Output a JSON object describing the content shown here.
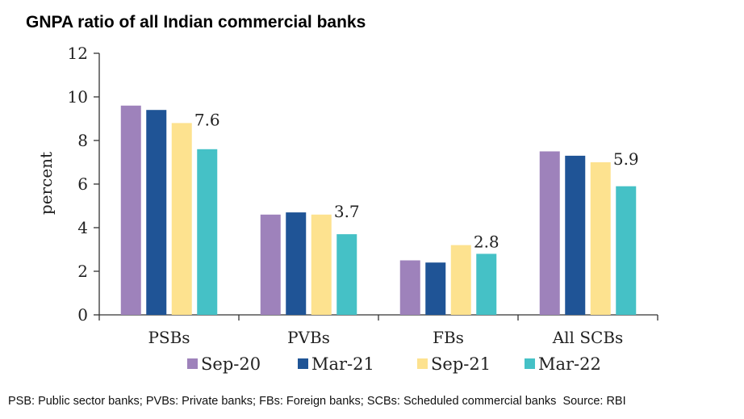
{
  "title": "GNPA ratio of all Indian commercial banks",
  "footnote": "PSB: Public sector banks; PVBs: Private banks; FBs: Foreign banks; SCBs: Scheduled commercial banks  Source: RBI",
  "chart_data": {
    "type": "bar",
    "title": "GNPA ratio of all Indian commercial banks",
    "xlabel": "",
    "ylabel": "percent",
    "ylim": [
      0,
      12
    ],
    "yticks": [
      0,
      2,
      4,
      6,
      8,
      10,
      12
    ],
    "grid": false,
    "legend_position": "bottom",
    "categories": [
      "PSBs",
      "PVBs",
      "FBs",
      "All SCBs"
    ],
    "series": [
      {
        "name": "Sep-20",
        "color": "#9e82bb",
        "values": [
          9.6,
          4.6,
          2.5,
          7.5
        ]
      },
      {
        "name": "Mar-21",
        "color": "#1f5496",
        "values": [
          9.4,
          4.7,
          2.4,
          7.3
        ]
      },
      {
        "name": "Sep-21",
        "color": "#fde28f",
        "values": [
          8.8,
          4.6,
          3.2,
          7.0
        ]
      },
      {
        "name": "Mar-22",
        "color": "#45c1c6",
        "values": [
          7.6,
          3.7,
          2.8,
          5.9
        ]
      }
    ],
    "data_labels": [
      {
        "series": "Mar-22",
        "category": "PSBs",
        "text": "7.6"
      },
      {
        "series": "Mar-22",
        "category": "PVBs",
        "text": "3.7"
      },
      {
        "series": "Mar-22",
        "category": "FBs",
        "text": "2.8"
      },
      {
        "series": "Mar-22",
        "category": "All SCBs",
        "text": "5.9"
      }
    ]
  }
}
